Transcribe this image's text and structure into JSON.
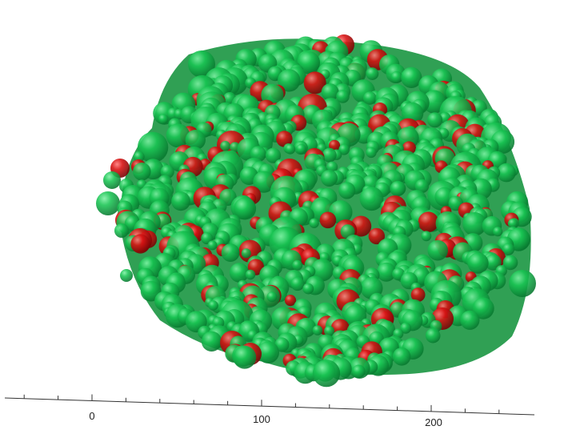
{
  "scene": {
    "type": "3d-sphere-cluster",
    "background_color": "#ffffff",
    "sphere_colors": {
      "majority": "#12c24a",
      "minority": "#d81010"
    }
  },
  "axis": {
    "color": "#333333",
    "tick_labels": [
      "0",
      "100",
      "200"
    ],
    "tick_values": [
      0,
      100,
      200
    ],
    "minor_tick_step": 20
  }
}
